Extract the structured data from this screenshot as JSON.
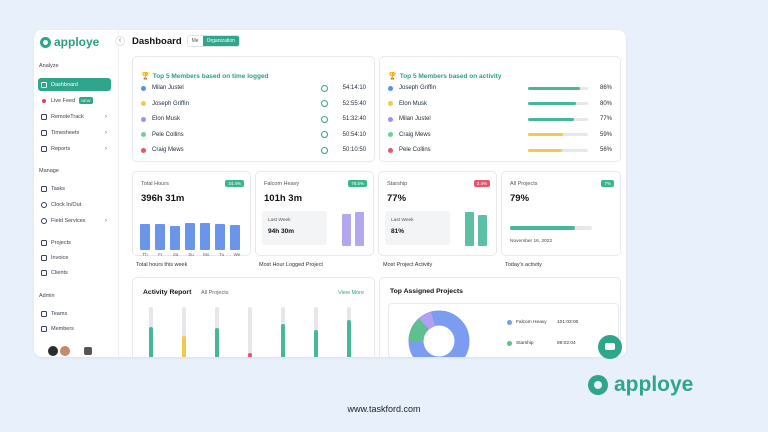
{
  "app": {
    "logo_text": "apploye"
  },
  "sidebar": {
    "sections": [
      "Analyze",
      "Manage",
      "Admin"
    ],
    "items": [
      {
        "label": "Dashboard",
        "active": true,
        "icon": "dashboard-icon"
      },
      {
        "label": "Live Feed",
        "badge": "NEW",
        "icon": "live-dot-icon"
      },
      {
        "label": "RemoteTrack",
        "chevron": true,
        "icon": "activity-icon"
      },
      {
        "label": "Timesheets",
        "chevron": true,
        "icon": "timesheet-icon"
      },
      {
        "label": "Reports",
        "chevron": true,
        "icon": "report-icon"
      },
      {
        "label": "Tasks",
        "icon": "tasks-icon"
      },
      {
        "label": "Clock In/Out",
        "icon": "clock-icon"
      },
      {
        "label": "Field Services",
        "chevron": true,
        "icon": "location-icon"
      },
      {
        "label": "Projects",
        "icon": "projects-icon"
      },
      {
        "label": "Invoice",
        "icon": "invoice-icon"
      },
      {
        "label": "Clients",
        "icon": "clients-icon"
      },
      {
        "label": "Teams",
        "icon": "teams-icon"
      },
      {
        "label": "Members",
        "icon": "members-icon"
      }
    ]
  },
  "header": {
    "title": "Dashboard",
    "toggle": [
      "Me",
      "Organization"
    ],
    "active_toggle": "Organization"
  },
  "time_card": {
    "title": "Top 5 Members based on time logged",
    "rows": [
      {
        "name": "Milan Justel",
        "time": "54:14:10",
        "color": "#5b8def"
      },
      {
        "name": "Joseph Griffin",
        "time": "52:55:40",
        "color": "#f2c94c"
      },
      {
        "name": "Elon Musk",
        "time": "51:32:40",
        "color": "#a78bfa"
      },
      {
        "name": "Pele Collins",
        "time": "50:54:10",
        "color": "#6fcf97"
      },
      {
        "name": "Craig Mews",
        "time": "50:10:50",
        "color": "#e5566b"
      }
    ]
  },
  "activity_card": {
    "title": "Top 5 Members based on activity",
    "rows": [
      {
        "name": "Joseph Griffin",
        "pct": "86%",
        "value": 86,
        "bar_color": "#46b89a",
        "color": "#5b8def"
      },
      {
        "name": "Elon Musk",
        "pct": "80%",
        "value": 80,
        "bar_color": "#46b89a",
        "color": "#f2c94c"
      },
      {
        "name": "Milan Justel",
        "pct": "77%",
        "value": 77,
        "bar_color": "#46b89a",
        "color": "#a78bfa"
      },
      {
        "name": "Craig Mews",
        "pct": "59%",
        "value": 59,
        "bar_color": "#f2c94c",
        "color": "#6fcf97"
      },
      {
        "name": "Pele Collins",
        "pct": "56%",
        "value": 56,
        "bar_color": "#f2c94c",
        "color": "#e5566b"
      }
    ]
  },
  "stats": {
    "total_hours": {
      "label": "Total Hours",
      "value": "396h 31m",
      "badge": "34.4%",
      "caption": "Total hours this week",
      "days": [
        "Th",
        "Fr",
        "Sa",
        "Su",
        "Mo",
        "Tu",
        "We"
      ],
      "bars": [
        0.8,
        0.82,
        0.76,
        0.84,
        0.84,
        0.8,
        0.79
      ]
    },
    "falcom": {
      "label": "Falcom Heavy",
      "value": "101h 3m",
      "badge": "78.5%",
      "sub_label": "Last Week",
      "sub_value": "94h 30m",
      "caption": "Most Hour Logged Project",
      "bars": [
        0.88,
        0.94
      ]
    },
    "starship": {
      "label": "Starship",
      "value": "77%",
      "badge": "2.4%",
      "sub_label": "Last Week",
      "sub_value": "81%",
      "caption": "Most Project Activity",
      "bars": [
        0.94,
        0.85
      ]
    },
    "all_projects": {
      "label": "All Projects",
      "value": "79%",
      "badge": "7%",
      "progress": 0.79,
      "date": "November 16, 2022",
      "caption": "Today's activity"
    }
  },
  "activity_report": {
    "title": "Activity Report",
    "filter": "All Projects",
    "link": "View More",
    "bars": [
      {
        "value": 0.62,
        "color": "#46b89a"
      },
      {
        "value": 0.44,
        "color": "#f2c94c"
      },
      {
        "value": 0.6,
        "color": "#46b89a"
      },
      {
        "value": 0.12,
        "color": "#e5566b"
      },
      {
        "value": 0.68,
        "color": "#46b89a"
      },
      {
        "value": 0.55,
        "color": "#46b89a"
      },
      {
        "value": 0.75,
        "color": "#46b89a"
      }
    ]
  },
  "assigned": {
    "title": "Top Assigned Projects",
    "legend": [
      {
        "name": "Falcom Heavy",
        "time": "101:03:00",
        "color": "#7b9cf0"
      },
      {
        "name": "Starship",
        "time": "89:02:04",
        "color": "#5cc08f"
      }
    ]
  },
  "footer": {
    "brand": "apploye",
    "url": "www.taskford.com"
  }
}
